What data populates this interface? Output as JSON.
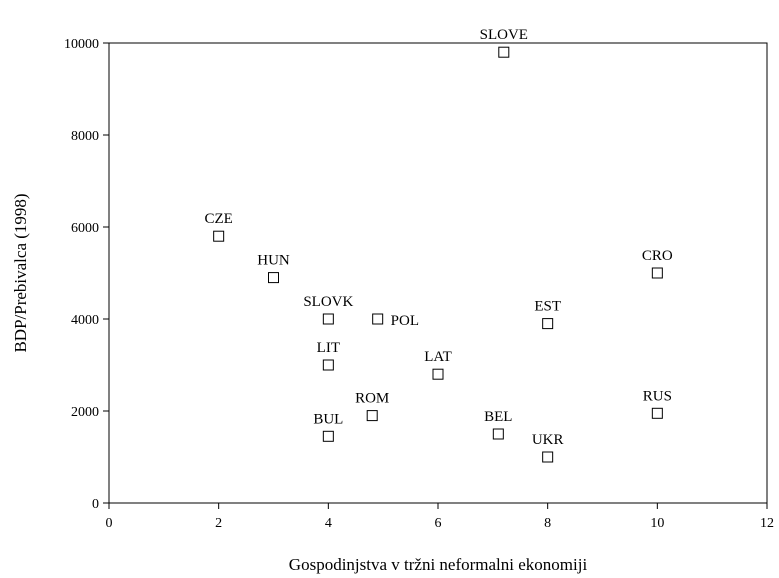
{
  "chart_data": {
    "type": "scatter",
    "title": "",
    "xlabel": "Gospodinjstva v tržni neformalni ekonomiji",
    "ylabel": "BDP/Prebivalca (1998)",
    "xlim": [
      0,
      12
    ],
    "ylim": [
      0,
      10000
    ],
    "x_ticks": [
      0,
      2,
      4,
      6,
      8,
      10,
      12
    ],
    "y_ticks": [
      0,
      2000,
      4000,
      6000,
      8000,
      10000
    ],
    "grid": false,
    "legend": "none",
    "marker": "open-square",
    "colors": {
      "marker": "#000000",
      "axis": "#000000",
      "background": "#ffffff"
    },
    "points": [
      {
        "label": "CZE",
        "x": 2,
        "y": 5800,
        "label_pos": "above"
      },
      {
        "label": "HUN",
        "x": 3,
        "y": 4900,
        "label_pos": "above"
      },
      {
        "label": "SLOVK",
        "x": 4,
        "y": 4000,
        "label_pos": "above"
      },
      {
        "label": "POL",
        "x": 4.9,
        "y": 4000,
        "label_pos": "right"
      },
      {
        "label": "LIT",
        "x": 4,
        "y": 3000,
        "label_pos": "above"
      },
      {
        "label": "BUL",
        "x": 4,
        "y": 1450,
        "label_pos": "above"
      },
      {
        "label": "ROM",
        "x": 4.8,
        "y": 1900,
        "label_pos": "above"
      },
      {
        "label": "LAT",
        "x": 6,
        "y": 2800,
        "label_pos": "above"
      },
      {
        "label": "SLOVE",
        "x": 7.2,
        "y": 9800,
        "label_pos": "above"
      },
      {
        "label": "BEL",
        "x": 7.1,
        "y": 1500,
        "label_pos": "above"
      },
      {
        "label": "EST",
        "x": 8,
        "y": 3900,
        "label_pos": "above"
      },
      {
        "label": "UKR",
        "x": 8,
        "y": 1000,
        "label_pos": "above"
      },
      {
        "label": "CRO",
        "x": 10,
        "y": 5000,
        "label_pos": "above"
      },
      {
        "label": "RUS",
        "x": 10,
        "y": 1950,
        "label_pos": "above"
      }
    ]
  }
}
